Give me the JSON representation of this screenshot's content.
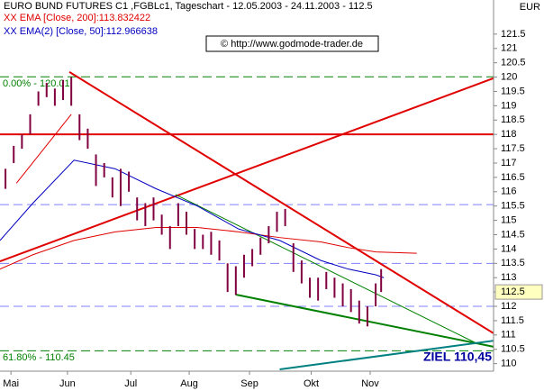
{
  "chart_data": {
    "type": "ohlc",
    "title": "EURO BUND FUTURES C1 ,FGBLc1, Tageschart - 12.05.2003 - 24.11.2003 - 112.5",
    "currency": "EUR",
    "copyright": "© http://www.godmode-trader.de",
    "target_label": "ZIEL 110,45",
    "last_price": {
      "value": 112.5,
      "label": "112.5"
    },
    "xlim": [
      -2,
      178
    ],
    "ylim": [
      109.8,
      122.25
    ],
    "xticks": [
      {
        "value": 2,
        "label": "Mai"
      },
      {
        "value": 22.6,
        "label": "Jun"
      },
      {
        "value": 45.7,
        "label": "Jul"
      },
      {
        "value": 67,
        "label": "Aug"
      },
      {
        "value": 89,
        "label": "Sep"
      },
      {
        "value": 111.5,
        "label": "Okt"
      },
      {
        "value": 133,
        "label": "Nov"
      }
    ],
    "yticks": [
      110,
      110.5,
      111,
      111.5,
      112,
      112.5,
      113,
      113.5,
      114,
      114.5,
      115,
      115.5,
      116,
      116.5,
      117,
      117.5,
      118,
      118.5,
      119,
      119.5,
      120,
      120.5,
      121,
      121.5
    ],
    "bar_color": "#800040",
    "bars": {
      "x": [
        0,
        3,
        6,
        9,
        12,
        15,
        18,
        21,
        24,
        27,
        30,
        33,
        36,
        39,
        42,
        45,
        48,
        51,
        54,
        57,
        60,
        63,
        66,
        69,
        72,
        75,
        78,
        81,
        84,
        87,
        90,
        93,
        96,
        99,
        102,
        105,
        108,
        111,
        114,
        117,
        120,
        123,
        126,
        129,
        132,
        135,
        137
      ],
      "high": [
        116.8,
        117.6,
        118,
        118.7,
        119.5,
        119.8,
        119.6,
        119.9,
        120,
        118.7,
        118.2,
        117.3,
        117,
        116.5,
        116.8,
        116.7,
        115.8,
        115.6,
        115.8,
        115.2,
        114.8,
        115.6,
        115.3,
        114.7,
        114.5,
        114.6,
        114.3,
        113.5,
        113.4,
        113.8,
        114,
        114.4,
        114.8,
        115.3,
        115.4,
        114.2,
        113.6,
        113,
        113,
        113.2,
        113,
        112.8,
        112.6,
        112.2,
        112,
        112.8,
        113.3
      ],
      "low": [
        116.1,
        117,
        117.5,
        118,
        119,
        119.3,
        119,
        119.2,
        119,
        117.8,
        117.5,
        116.2,
        116.5,
        115.8,
        115.5,
        116,
        115,
        114.8,
        115,
        114.5,
        114,
        114.8,
        114.5,
        114,
        114,
        113.8,
        113.6,
        112.5,
        112.4,
        113,
        113.4,
        113.8,
        114.2,
        114.6,
        114.8,
        113.2,
        112.8,
        112.3,
        112.2,
        112.6,
        112.3,
        112,
        111.8,
        111.4,
        111.3,
        112,
        112.5
      ]
    },
    "series": [
      {
        "name": "XX EMA [Close, 200]:113.832422",
        "color": "#e00000",
        "x": [
          -2,
          10,
          25,
          40,
          55,
          70,
          85,
          100,
          115,
          125,
          135,
          150
        ],
        "values": [
          113.3,
          113.8,
          114.3,
          114.6,
          114.75,
          114.75,
          114.6,
          114.4,
          114.25,
          114.05,
          113.9,
          113.85
        ]
      },
      {
        "name": "XX EMA(2) [Close, 50]:112.966638",
        "color": "#0000c0",
        "x": [
          -2,
          10,
          25,
          40,
          55,
          70,
          85,
          100,
          115,
          125,
          135,
          138
        ],
        "values": [
          114.3,
          115.6,
          117.1,
          116.8,
          116.1,
          115.5,
          114.7,
          114.3,
          113.6,
          113.3,
          113.1,
          113
        ]
      }
    ],
    "levels": [
      {
        "value": 118,
        "color": "#e00000",
        "dash": false,
        "width": 2
      },
      {
        "value": 120.01,
        "color": "#008000",
        "dash": true,
        "width": 1,
        "label": "0.00% - 120.01"
      },
      {
        "value": 110.45,
        "color": "#008000",
        "dash": true,
        "width": 1,
        "label": "61.80% - 110.45"
      },
      {
        "value": 115.55,
        "color": "#8080ff",
        "dash": true,
        "width": 1
      },
      {
        "value": 113.5,
        "color": "#8080ff",
        "dash": true,
        "width": 1
      },
      {
        "value": 112,
        "color": "#8080ff",
        "dash": true,
        "width": 1
      }
    ],
    "trendlines": [
      {
        "color": "#e00000",
        "width": 2,
        "points": [
          [
            23.3,
            120.18
          ],
          [
            178,
            111.06
          ]
        ]
      },
      {
        "color": "#e00000",
        "width": 2,
        "points": [
          [
            -2,
            113.57
          ],
          [
            178,
            119.96
          ]
        ]
      },
      {
        "color": "#008000",
        "width": 2,
        "points": [
          [
            84,
            112.41
          ],
          [
            178,
            110.59
          ]
        ]
      },
      {
        "color": "#008000",
        "width": 1,
        "points": [
          [
            62,
            115.9
          ],
          [
            172,
            110.7
          ]
        ]
      },
      {
        "color": "#008080",
        "width": 2,
        "points": [
          [
            100,
            109.8
          ],
          [
            178,
            110.8
          ]
        ]
      },
      {
        "color": "#e00000",
        "width": 1,
        "points": [
          [
            4,
            116.3
          ],
          [
            24,
            118.7
          ]
        ]
      }
    ]
  }
}
